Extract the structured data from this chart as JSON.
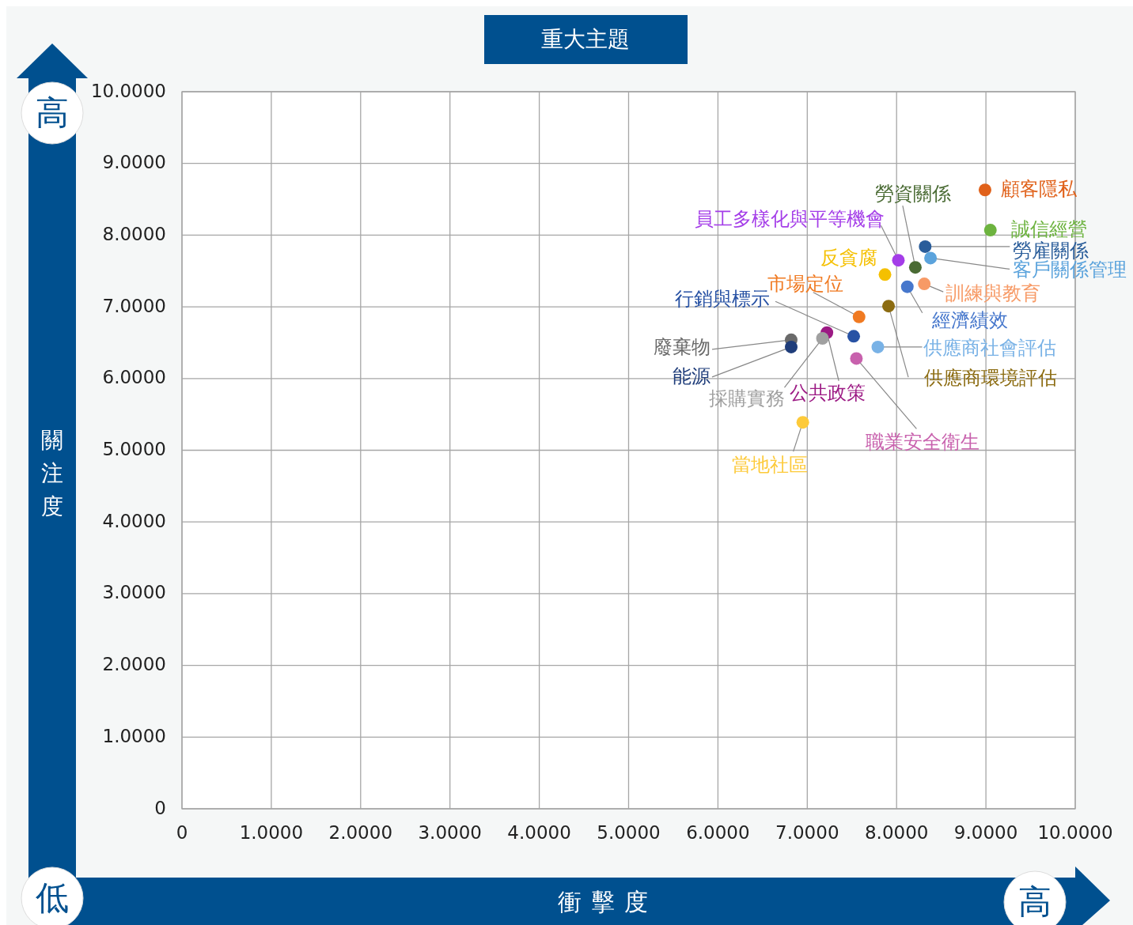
{
  "chart_data": {
    "type": "scatter",
    "title": "重大主題",
    "xlabel": "衝擊度",
    "ylabel": "關注度",
    "annotations": [
      "高",
      "低",
      "高"
    ],
    "xlim": [
      0,
      10
    ],
    "ylim": [
      0,
      10
    ],
    "xticks": [
      0,
      {
        "value": 1,
        "label": "1.0000"
      },
      {
        "value": 2,
        "label": "2.0000"
      },
      {
        "value": 3,
        "label": "3.0000"
      },
      {
        "value": 4,
        "label": "4.0000"
      },
      {
        "value": 5,
        "label": "5.0000"
      },
      {
        "value": 6,
        "label": "6.0000"
      },
      {
        "value": 7,
        "label": "7.0000"
      },
      {
        "value": 8,
        "label": "8.0000"
      },
      {
        "value": 9,
        "label": "9.0000"
      },
      {
        "value": 10,
        "label": "10.0000"
      }
    ],
    "yticks": [
      0,
      {
        "value": 1,
        "label": "1.0000"
      },
      {
        "value": 2,
        "label": "2.0000"
      },
      {
        "value": 3,
        "label": "3.0000"
      },
      {
        "value": 4,
        "label": "4.0000"
      },
      {
        "value": 5,
        "label": "5.0000"
      },
      {
        "value": 6,
        "label": "6.0000"
      },
      {
        "value": 7,
        "label": "7.0000"
      },
      {
        "value": 8,
        "label": "8.0000"
      },
      {
        "value": 9,
        "label": "9.0000"
      },
      {
        "value": 10,
        "label": "10.0000"
      }
    ],
    "grid": true,
    "marker": "circle",
    "series": [
      {
        "name": "顧客隱私",
        "color": "#e0611a",
        "x": [
          8.99
        ],
        "values": [
          8.63
        ]
      },
      {
        "name": "誠信經營",
        "color": "#6db33f",
        "x": [
          9.05
        ],
        "values": [
          8.07
        ]
      },
      {
        "name": "勞雇關係",
        "color": "#2a5d9a",
        "x": [
          8.32
        ],
        "values": [
          7.84
        ]
      },
      {
        "name": "客戶關係管理",
        "color": "#5ba3dc",
        "x": [
          8.38
        ],
        "values": [
          7.68
        ]
      },
      {
        "name": "員工多樣化與平等機會",
        "color": "#a43de8",
        "x": [
          8.02
        ],
        "values": [
          7.65
        ]
      },
      {
        "name": "勞資關係",
        "color": "#4a6b34",
        "x": [
          8.21
        ],
        "values": [
          7.55
        ]
      },
      {
        "name": "反貪腐",
        "color": "#f5c000",
        "x": [
          7.87
        ],
        "values": [
          7.45
        ]
      },
      {
        "name": "訓練與教育",
        "color": "#f79a66",
        "x": [
          8.31
        ],
        "values": [
          7.32
        ]
      },
      {
        "name": "經濟績效",
        "color": "#4677cc",
        "x": [
          8.12
        ],
        "values": [
          7.28
        ]
      },
      {
        "name": "供應商環境評估",
        "color": "#8c6c12",
        "x": [
          7.91
        ],
        "values": [
          7.01
        ]
      },
      {
        "name": "市場定位",
        "color": "#f07a22",
        "x": [
          7.58
        ],
        "values": [
          6.86
        ]
      },
      {
        "name": "行銷與標示",
        "color": "#2852a4",
        "x": [
          7.52
        ],
        "values": [
          6.59
        ]
      },
      {
        "name": "公共政策",
        "color": "#9c1a84",
        "x": [
          7.22
        ],
        "values": [
          6.64
        ]
      },
      {
        "name": "採購實務",
        "color": "#a0a0a0",
        "x": [
          7.17
        ],
        "values": [
          6.56
        ]
      },
      {
        "name": "廢棄物",
        "color": "#6a6a6a",
        "x": [
          6.82
        ],
        "values": [
          6.54
        ]
      },
      {
        "name": "能源",
        "color": "#1f3d7a",
        "x": [
          6.82
        ],
        "values": [
          6.44
        ]
      },
      {
        "name": "供應商社會評估",
        "color": "#79b2e6",
        "x": [
          7.79
        ],
        "values": [
          6.44
        ]
      },
      {
        "name": "職業安全衛生",
        "color": "#c861ad",
        "x": [
          7.55
        ],
        "values": [
          6.28
        ]
      },
      {
        "name": "當地社區",
        "color": "#fdca3a",
        "x": [
          6.95
        ],
        "values": [
          5.39
        ]
      }
    ]
  }
}
